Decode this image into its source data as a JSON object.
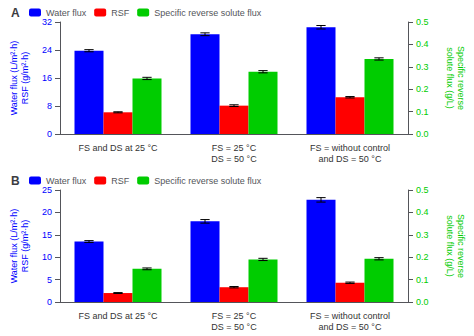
{
  "chart_data": [
    {
      "type": "bar",
      "title": "A",
      "categories": [
        "FS and DS at 25 °C",
        "FS = 25 °C\nDS = 50 °C",
        "FS = without control\nand DS = 50 °C"
      ],
      "ylabel": "Water flux (L/m²·h)\nRSF (g/m²·h)",
      "y2label": "Specific reverse\nsolute flux (g/L)",
      "ylim": [
        0,
        32
      ],
      "yticks": [
        0,
        8,
        16,
        24,
        32
      ],
      "y2lim": [
        0,
        0.5
      ],
      "y2ticks": [
        {
          "value": 0.0,
          "label": "0.0"
        },
        0.1,
        0.2,
        0.3,
        0.4,
        0.5
      ],
      "legend": "upper left",
      "grid": false,
      "series": [
        {
          "name": "Water flux",
          "color": "#0000FF",
          "values": [
            23.8,
            28.5,
            30.5
          ],
          "errors": [
            0.3,
            0.4,
            0.5
          ]
        },
        {
          "name": "RSF",
          "color": "#FF0000",
          "values": [
            6.2,
            8.1,
            10.5
          ],
          "errors": [
            0.15,
            0.25,
            0.2
          ]
        },
        {
          "name": "Specific reverse solute flux",
          "color": "#00CC00",
          "axis": "y2",
          "values": [
            0.248,
            0.278,
            0.335
          ],
          "errors": [
            0.005,
            0.005,
            0.005
          ]
        }
      ]
    },
    {
      "type": "bar",
      "title": "B",
      "categories": [
        "FS and DS at 25 °C",
        "FS = 25 °C\nDS = 50 °C",
        "FS = without control\nand DS = 50 °C"
      ],
      "ylabel": "Water flux (L/m²·h)\nRSF (g/m²·h)",
      "y2label": "Specific reverse\nsolute flux (g/L)",
      "ylim": [
        0,
        25
      ],
      "yticks": [
        0,
        5,
        10,
        15,
        20,
        25
      ],
      "y2lim": [
        0,
        0.5
      ],
      "y2ticks": [
        {
          "value": 0.0,
          "label": "0.0"
        },
        0.1,
        0.2,
        0.3,
        0.4,
        0.5
      ],
      "legend": "upper left",
      "grid": false,
      "series": [
        {
          "name": "Water flux",
          "color": "#0000FF",
          "values": [
            13.5,
            18.0,
            22.8
          ],
          "errors": [
            0.2,
            0.4,
            0.5
          ]
        },
        {
          "name": "RSF",
          "color": "#FF0000",
          "values": [
            2.0,
            3.3,
            4.3
          ],
          "errors": [
            0.1,
            0.15,
            0.15
          ]
        },
        {
          "name": "Specific reverse solute flux",
          "color": "#00CC00",
          "axis": "y2",
          "values": [
            0.148,
            0.19,
            0.193
          ],
          "errors": [
            0.004,
            0.005,
            0.005
          ]
        }
      ]
    }
  ]
}
